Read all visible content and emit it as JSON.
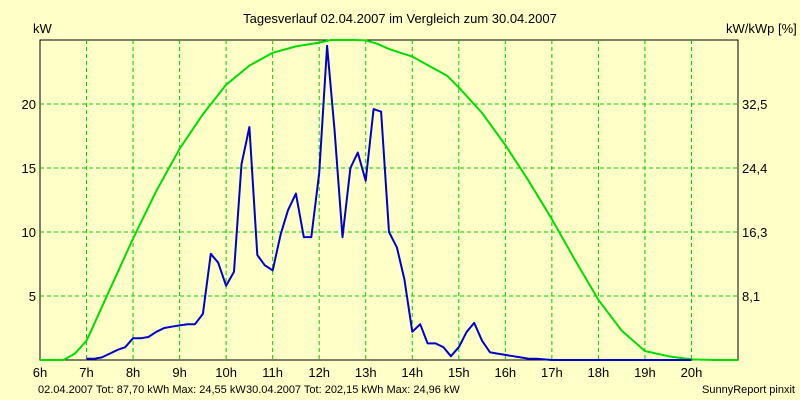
{
  "chart_data": {
    "type": "line",
    "title": "Tagesverlauf 02.04.2007 im Vergleich zum 30.04.2007",
    "ylabel_left": "kW",
    "ylabel_right": "kW/kWp [%]",
    "xlim": [
      6,
      21
    ],
    "ylim": [
      0,
      25
    ],
    "x_ticks": [
      {
        "x": 6,
        "label": "6h"
      },
      {
        "x": 7,
        "label": "7h"
      },
      {
        "x": 8,
        "label": "8h"
      },
      {
        "x": 9,
        "label": "9h"
      },
      {
        "x": 10,
        "label": "10h"
      },
      {
        "x": 11,
        "label": "11h"
      },
      {
        "x": 12,
        "label": "12h"
      },
      {
        "x": 13,
        "label": "13h"
      },
      {
        "x": 14,
        "label": "14h"
      },
      {
        "x": 15,
        "label": "15h"
      },
      {
        "x": 16,
        "label": "16h"
      },
      {
        "x": 17,
        "label": "17h"
      },
      {
        "x": 18,
        "label": "18h"
      },
      {
        "x": 19,
        "label": "19h"
      },
      {
        "x": 20,
        "label": "20h"
      }
    ],
    "y_left_ticks": [
      {
        "y": 5,
        "label": "5"
      },
      {
        "y": 10,
        "label": "10"
      },
      {
        "y": 15,
        "label": "15"
      },
      {
        "y": 20,
        "label": "20"
      }
    ],
    "y_right_ticks": [
      {
        "y": 5,
        "label": "8,1"
      },
      {
        "y": 10,
        "label": "16,3"
      },
      {
        "y": 15,
        "label": "24,4"
      },
      {
        "y": 20,
        "label": "32,5"
      }
    ],
    "grid": true,
    "series": [
      {
        "color": "#00dd00",
        "x": [
          6,
          6.5,
          6.75,
          7,
          7.25,
          7.5,
          8,
          8.5,
          9,
          9.5,
          10,
          10.5,
          11,
          11.5,
          12,
          12.25,
          12.5,
          12.75,
          13,
          13.25,
          13.5,
          13.75,
          14,
          14.25,
          14.5,
          14.75,
          15,
          15.5,
          16,
          16.5,
          17,
          17.5,
          18,
          18.5,
          19,
          19.5,
          20,
          20.5,
          21
        ],
        "y": [
          0,
          0,
          0.5,
          1.5,
          3.5,
          5.5,
          9.5,
          13.2,
          16.5,
          19.2,
          21.5,
          23.0,
          24.0,
          24.5,
          24.8,
          25.0,
          25.0,
          25.0,
          24.97,
          24.7,
          24.3,
          24.0,
          23.7,
          23.2,
          22.7,
          22.2,
          21.3,
          19.3,
          16.8,
          14.0,
          11.0,
          7.8,
          4.7,
          2.3,
          0.7,
          0.3,
          0.05,
          0,
          0
        ]
      },
      {
        "color": "#0000cc",
        "x": [
          7,
          7.17,
          7.33,
          7.5,
          7.67,
          7.83,
          8,
          8.17,
          8.33,
          8.5,
          8.67,
          8.83,
          9,
          9.17,
          9.33,
          9.5,
          9.67,
          9.83,
          10,
          10.17,
          10.33,
          10.5,
          10.67,
          10.83,
          11,
          11.17,
          11.33,
          11.5,
          11.67,
          11.83,
          12,
          12.17,
          12.33,
          12.5,
          12.67,
          12.83,
          13,
          13.17,
          13.33,
          13.5,
          13.67,
          13.83,
          14,
          14.17,
          14.33,
          14.5,
          14.67,
          14.83,
          15,
          15.17,
          15.33,
          15.5,
          15.67,
          15.83,
          16,
          16.17,
          16.33,
          16.5,
          16.67,
          16.83,
          17,
          17.17,
          17.33,
          17.5,
          17.67,
          17.83,
          18,
          18.17,
          18.33,
          18.5,
          18.67,
          18.83,
          19,
          19.33,
          19.67,
          20
        ],
        "y": [
          0.1,
          0.1,
          0.2,
          0.5,
          0.8,
          1.0,
          1.7,
          1.7,
          1.8,
          2.2,
          2.5,
          2.6,
          2.7,
          2.8,
          2.8,
          3.6,
          8.3,
          7.6,
          5.8,
          6.9,
          15.3,
          18.2,
          8.2,
          7.4,
          7.0,
          9.8,
          11.7,
          13.0,
          9.6,
          9.6,
          14.6,
          24.55,
          17.9,
          9.6,
          15.0,
          16.2,
          14.0,
          19.6,
          19.4,
          10.0,
          8.8,
          6.3,
          2.2,
          2.8,
          1.3,
          1.3,
          1.0,
          0.3,
          1.0,
          2.2,
          2.9,
          1.5,
          0.6,
          0.5,
          0.4,
          0.3,
          0.2,
          0.1,
          0.1,
          0.05,
          0,
          0,
          0,
          0,
          0,
          0,
          0,
          0,
          0,
          0,
          0,
          0,
          0,
          0,
          0,
          0
        ]
      }
    ]
  },
  "footer": {
    "series1_text": "02.04.2007 Tot: 87,70 kWh Max: 24,55 kW",
    "series2_text": "30.04.2007 Tot: 202,15 kWh Max: 24,96 kW",
    "credit": "SunnyReport pinxit",
    "series1_color": "#0000cc",
    "series2_color": "#00aa00"
  }
}
